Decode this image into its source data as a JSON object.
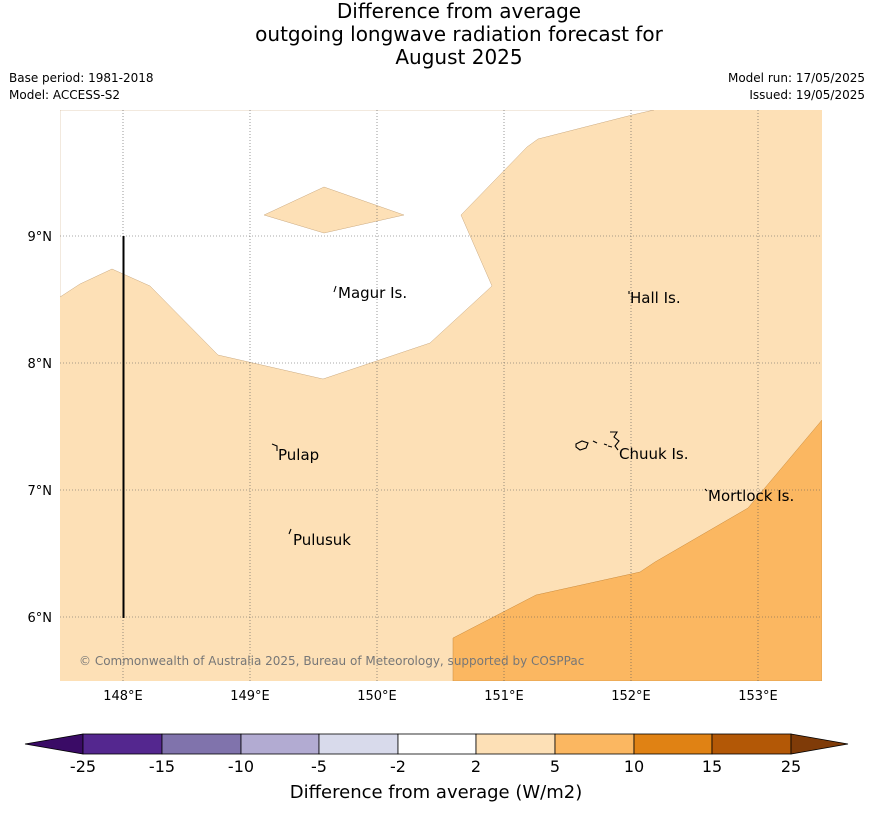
{
  "header": {
    "title_lines": [
      "Difference from average",
      "outgoing longwave radiation forecast for",
      "August 2025"
    ],
    "base_period": "Base period: 1981-2018",
    "model": "Model: ACCESS-S2",
    "model_run": "Model run: 17/05/2025",
    "issued": "Issued: 19/05/2025"
  },
  "map": {
    "lon_ticks": [
      "148°E",
      "149°E",
      "150°E",
      "151°E",
      "152°E",
      "153°E"
    ],
    "lat_ticks": [
      "9°N",
      "8°N",
      "7°N",
      "6°N"
    ],
    "places": {
      "magur": "Magur Is.",
      "hall": "Hall Is.",
      "pulap": "Pulap",
      "chuuk": "Chuuk Is.",
      "mortlock": "Mortlock Is.",
      "pulusuk": "Pulusuk"
    },
    "copyright": "© Commonwealth of Australia 2025, Bureau of Meteorology, supported by COSPPac"
  },
  "colorbar": {
    "title": "Difference from average (W/m2)",
    "ticks": [
      "-25",
      "-15",
      "-10",
      "-5",
      "-2",
      "2",
      "5",
      "10",
      "15",
      "25"
    ],
    "colors": {
      "extend_low": "#3a0b66",
      "b1": "#54278f",
      "b2": "#8073ac",
      "b3": "#b2abd2",
      "b4": "#d8daeb",
      "b5": "#ffffff",
      "b6": "#fde0b6",
      "b7": "#fbb761",
      "b8": "#e08214",
      "b9": "#b35806",
      "extend_high": "#7f3b08"
    }
  }
}
